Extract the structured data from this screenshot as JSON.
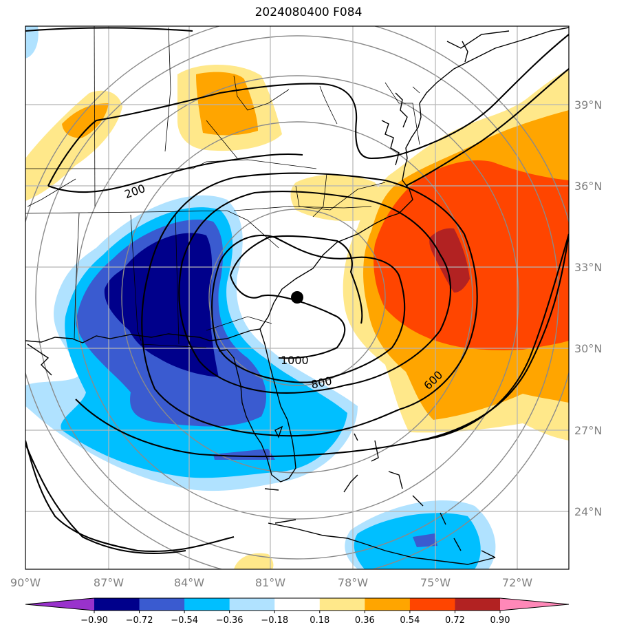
{
  "title": "2024080400 F084",
  "lon_labels": [
    "90°W",
    "87°W",
    "84°W",
    "81°W",
    "78°W",
    "75°W",
    "72°W"
  ],
  "lat_labels": [
    "39°N",
    "36°N",
    "33°N",
    "30°N",
    "27°N",
    "24°N"
  ],
  "contour_labels": [
    "200",
    "1000",
    "800",
    "600"
  ],
  "colorbar": {
    "ticks": [
      "−0.90",
      "−0.72",
      "−0.54",
      "−0.36",
      "−0.18",
      "0.18",
      "0.36",
      "0.54",
      "0.72",
      "0.90"
    ],
    "colors": [
      "#9932cc",
      "#00008b",
      "#3a5bd0",
      "#00bfff",
      "#b0e2ff",
      "#ffffff",
      "#ffe88a",
      "#ffa500",
      "#ff4500",
      "#b22222",
      "#ff88b8"
    ]
  },
  "colors": {
    "dark_blue": "#00008b",
    "royal_blue": "#3a5bd0",
    "sky_blue": "#00bfff",
    "pale_blue": "#b0e2ff",
    "pale_yellow": "#ffe88a",
    "orange": "#ffa500",
    "red_orange": "#ff4500",
    "firebrick": "#b22222"
  }
}
